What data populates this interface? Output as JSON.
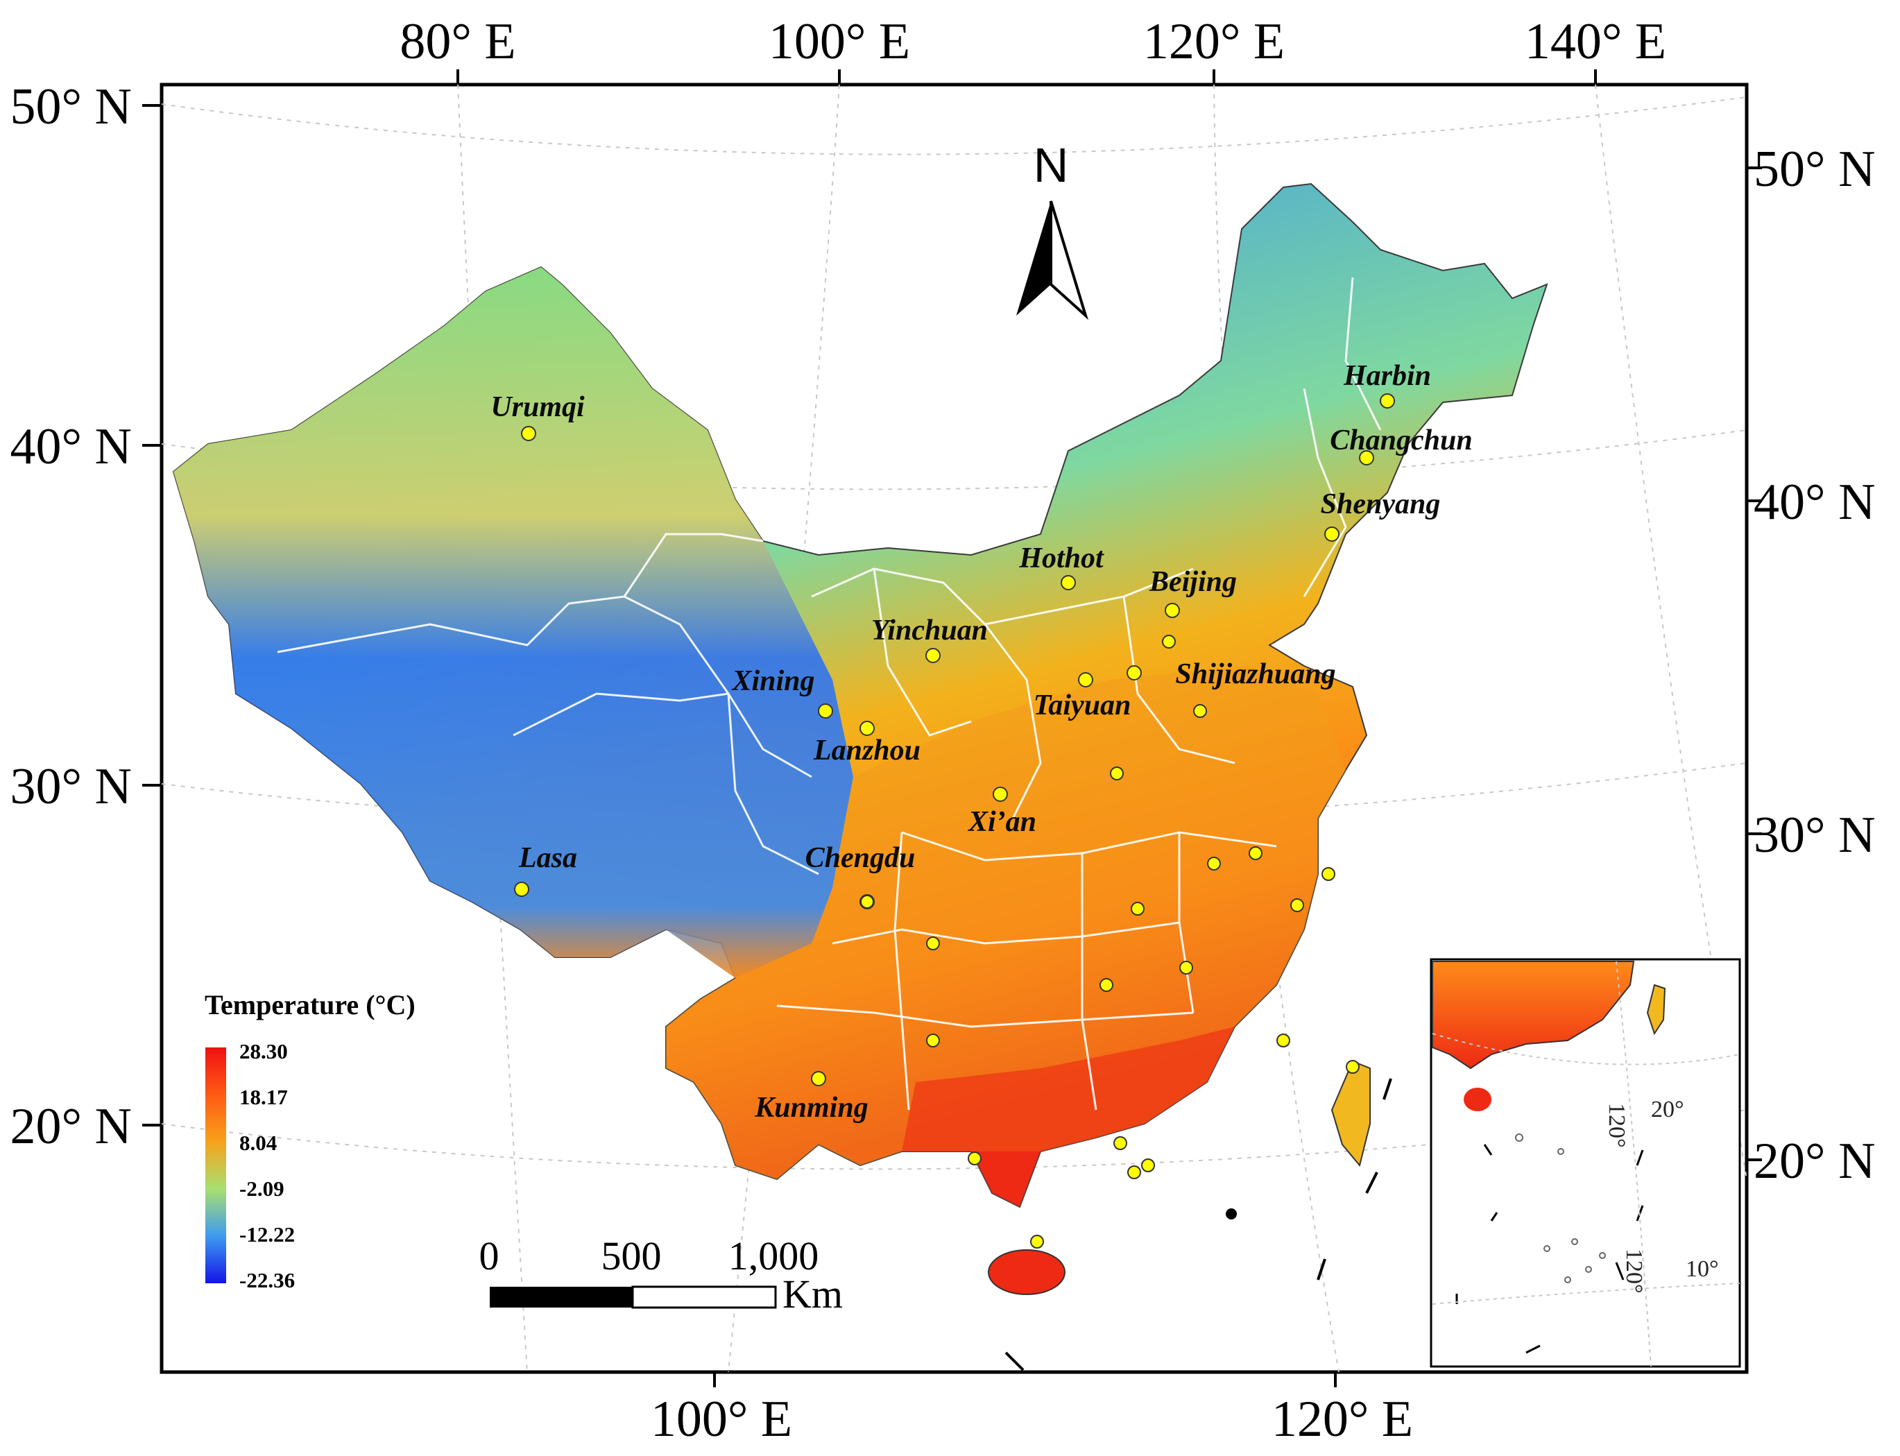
{
  "map": {
    "top_lon_labels": [
      "80° E",
      "100° E",
      "120° E",
      "140° E"
    ],
    "bottom_lon_labels": [
      "100° E",
      "120° E"
    ],
    "left_lat_labels": [
      "50° N",
      "40° N",
      "30° N",
      "20° N"
    ],
    "right_lat_labels": [
      "50° N",
      "40° N",
      "30° N",
      "20° N"
    ],
    "north_arrow": "N",
    "cities": [
      {
        "name": "Harbin"
      },
      {
        "name": "Changchun"
      },
      {
        "name": "Shenyang"
      },
      {
        "name": "Urumqi"
      },
      {
        "name": "Hothot"
      },
      {
        "name": "Beijing"
      },
      {
        "name": "Yinchuan"
      },
      {
        "name": "Shijiazhuang"
      },
      {
        "name": "Xining"
      },
      {
        "name": "Taiyuan"
      },
      {
        "name": "Lanzhou"
      },
      {
        "name": "Xi’an"
      },
      {
        "name": "Lasa"
      },
      {
        "name": "Chengdu"
      },
      {
        "name": "Kunming"
      }
    ],
    "legend": {
      "title": "Temperature (°C)",
      "values": [
        "28.30",
        "18.17",
        "8.04",
        "-2.09",
        "-12.22",
        "-22.36"
      ],
      "colors": [
        "#ee1c1c",
        "#ff7a1a",
        "#f7c21a",
        "#a8e070",
        "#3f9af0",
        "#1a1ae8"
      ]
    },
    "scale_bar": {
      "labels": [
        "0",
        "500",
        "1,000"
      ],
      "unit": "Km"
    },
    "inset": {
      "lon_labels": [
        "120°",
        "120°"
      ],
      "lat_labels": [
        "20°",
        "10°"
      ]
    }
  }
}
